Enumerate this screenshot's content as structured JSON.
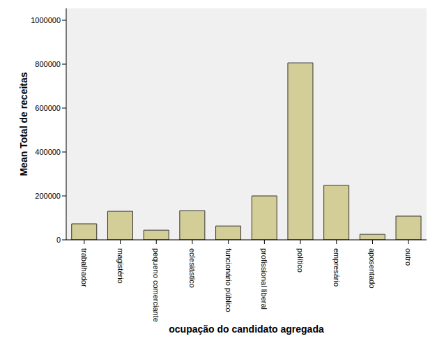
{
  "chart_data": {
    "type": "bar",
    "x_label": "ocupação do candidato agregada",
    "y_label": "Mean Total de receitas",
    "categories": [
      "trabalhador",
      "magistério",
      "pequeno comerciante",
      "eclesiástico",
      "funcionário público",
      "profissional liberal",
      "político",
      "empresário",
      "aposentado",
      "outro"
    ],
    "values": [
      73000,
      130000,
      44000,
      133000,
      63000,
      200000,
      806000,
      248000,
      25000,
      108000
    ],
    "color": "#D3CE97",
    "ylim": [
      0,
      1054000
    ],
    "yticks": [
      0,
      200000,
      400000,
      600000,
      800000,
      1000000
    ],
    "grid": false
  }
}
